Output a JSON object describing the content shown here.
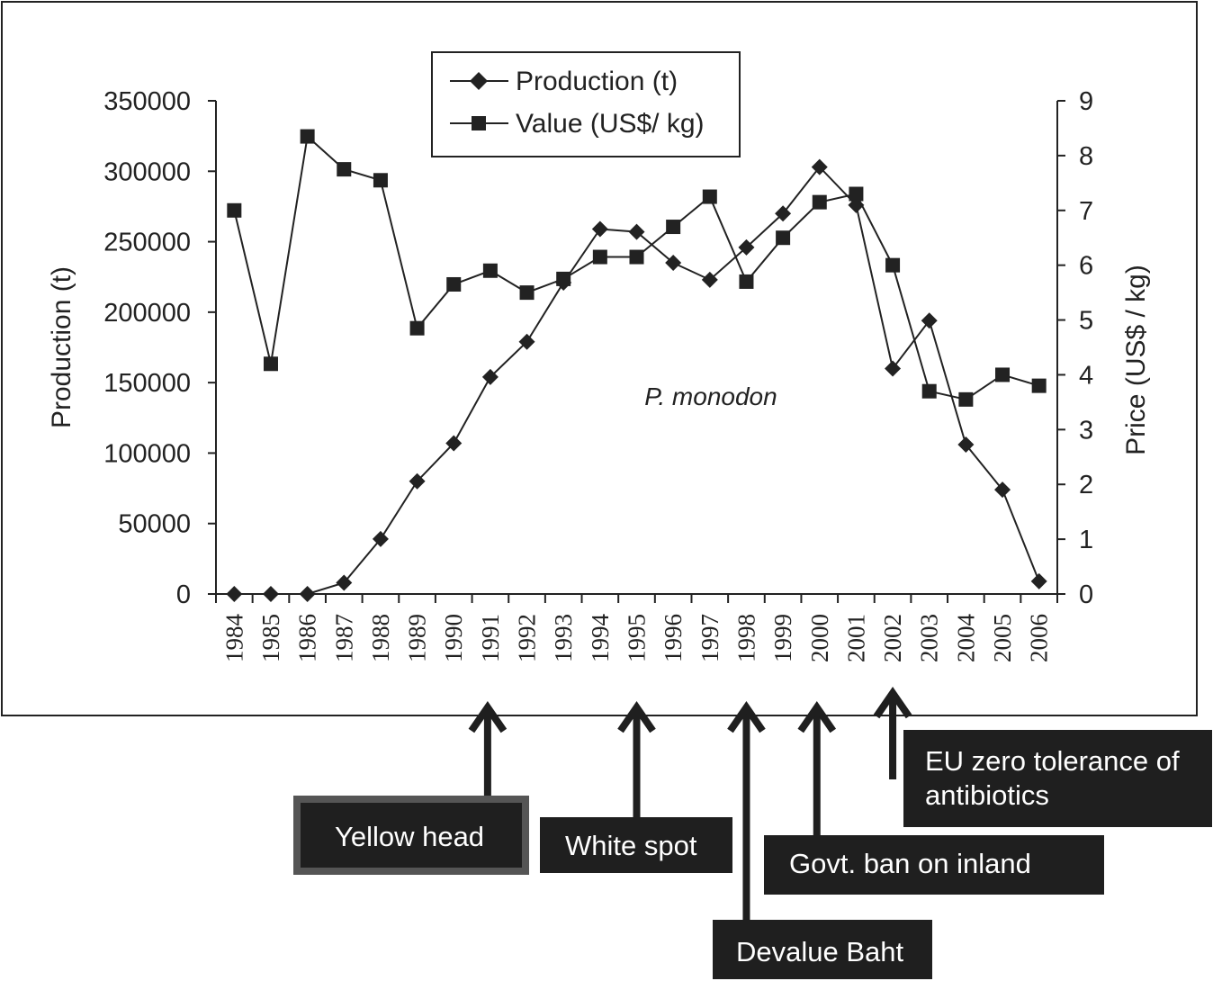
{
  "chart_data": {
    "type": "line",
    "annotation": "P. monodon",
    "x": [
      "1984",
      "1985",
      "1986",
      "1987",
      "1988",
      "1989",
      "1990",
      "1991",
      "1992",
      "1993",
      "1994",
      "1995",
      "1996",
      "1997",
      "1998",
      "1999",
      "2000",
      "2001",
      "2002",
      "2003",
      "2004",
      "2005",
      "2006"
    ],
    "y_left": {
      "label": "Production (t)",
      "range": [
        0,
        350000
      ],
      "ticks": [
        "0",
        "50000",
        "100000",
        "150000",
        "200000",
        "250000",
        "300000",
        "350000"
      ]
    },
    "y_right": {
      "label": "Price (US$ / kg)",
      "range": [
        0,
        9
      ],
      "ticks": [
        "0",
        "1",
        "2",
        "3",
        "4",
        "5",
        "6",
        "7",
        "8",
        "9"
      ]
    },
    "series": [
      {
        "name": "Production (t)",
        "axis": "left",
        "marker": "diamond",
        "values": [
          0,
          0,
          0,
          8000,
          39000,
          80000,
          107000,
          154000,
          179000,
          221000,
          259000,
          257000,
          235000,
          223000,
          246000,
          270000,
          303000,
          276000,
          160000,
          194000,
          106000,
          74000,
          9000
        ]
      },
      {
        "name": "Value (US$/ kg)",
        "axis": "right",
        "marker": "square",
        "values": [
          7.0,
          4.2,
          8.35,
          7.75,
          7.55,
          4.85,
          5.65,
          5.9,
          5.5,
          5.75,
          6.15,
          6.15,
          6.7,
          7.25,
          5.7,
          6.5,
          7.15,
          7.3,
          6.0,
          3.7,
          3.55,
          4.0,
          3.8
        ]
      }
    ],
    "legend": {
      "position": "top-center",
      "production_label": "Production (t)",
      "value_label": "Value (US$/ kg)"
    },
    "grid": false
  },
  "events": [
    {
      "label": "Yellow head",
      "year": "1991"
    },
    {
      "label": "White spot",
      "year": "1995"
    },
    {
      "label": "Devalue Baht",
      "year": "1998"
    },
    {
      "label": "Govt. ban on inland",
      "year": "2000"
    },
    {
      "label": "EU zero tolerance of antibiotics",
      "year": "2002"
    }
  ]
}
